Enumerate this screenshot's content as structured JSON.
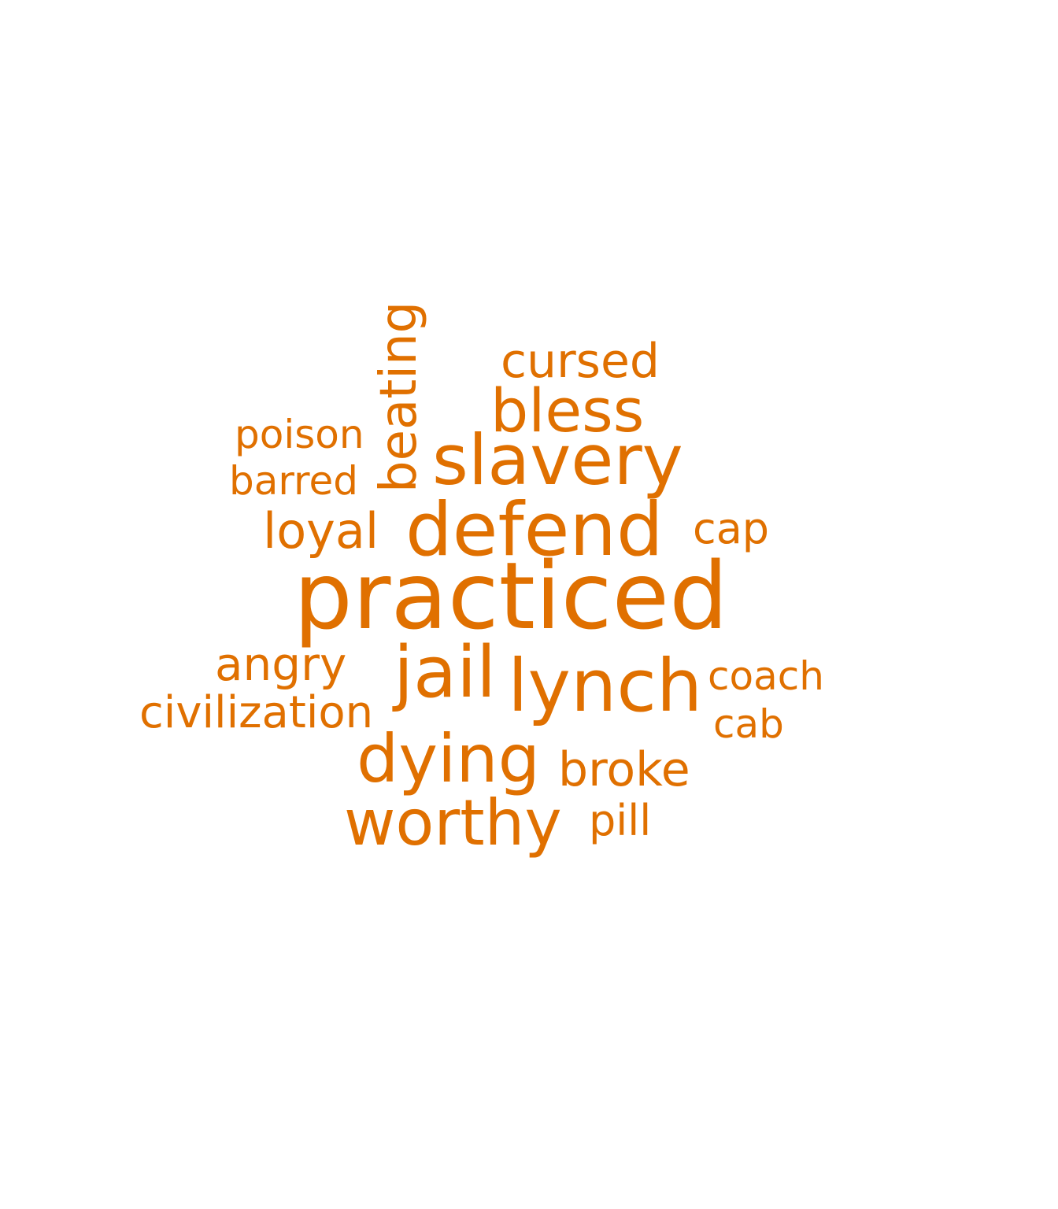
{
  "word_color": "#e07000",
  "background_color": "#ffffff",
  "words": {
    "practiced": "practiced",
    "defend": "defend",
    "slavery": "slavery",
    "bless": "bless",
    "cursed": "cursed",
    "beating": "beating",
    "poison": "poison",
    "barred": "barred",
    "loyal": "loyal",
    "cap": "cap",
    "angry": "angry",
    "civilization": "civilization",
    "jail": "jail",
    "lynch": "lynch",
    "coach": "coach",
    "cab": "cab",
    "dying": "dying",
    "broke": "broke",
    "worthy": "worthy",
    "pill": "pill"
  }
}
